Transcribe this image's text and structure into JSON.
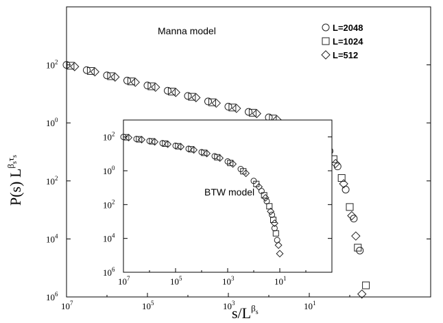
{
  "chart_data": [
    {
      "panel": "main",
      "type": "scatter",
      "annotation": "Manna model",
      "xlabel": "s/L",
      "xlabel_superscript": "β",
      "xlabel_superscript_sub": "s",
      "ylabel": "P(s) L",
      "ylabel_superscript": "β",
      "ylabel_superscript_sub": "s",
      "ylabel_superscript2": "τ",
      "ylabel_superscript2_sub": "s",
      "x_tick_labels": [
        {
          "base": "10",
          "exp": "7"
        },
        {
          "base": "10",
          "exp": "5"
        },
        {
          "base": "10",
          "exp": "3"
        },
        {
          "base": "10",
          "exp": "1"
        }
      ],
      "y_tick_labels": [
        {
          "base": "10",
          "exp": "2"
        },
        {
          "base": "10",
          "exp": "0"
        },
        {
          "base": "10",
          "exp": "2"
        },
        {
          "base": "10",
          "exp": "4"
        },
        {
          "base": "10",
          "exp": "6"
        }
      ],
      "xlim_decades": [
        -7,
        2
      ],
      "ylim_decades": [
        -6,
        4
      ],
      "legend_position": "top-right",
      "series": [
        {
          "name": "L=2048",
          "marker": "circle",
          "points": [
            [
              -7.0,
              2.0
            ],
            [
              -6.5,
              1.82
            ],
            [
              -6.0,
              1.64
            ],
            [
              -5.5,
              1.46
            ],
            [
              -5.0,
              1.29
            ],
            [
              -4.5,
              1.11
            ],
            [
              -4.0,
              0.93
            ],
            [
              -3.5,
              0.74
            ],
            [
              -3.0,
              0.56
            ],
            [
              -2.5,
              0.38
            ],
            [
              -2.0,
              0.19
            ],
            [
              -1.5,
              -0.04
            ],
            [
              -1.0,
              -0.34
            ],
            [
              -0.7,
              -0.65
            ],
            [
              -0.5,
              -0.97
            ],
            [
              -0.3,
              -1.5
            ],
            [
              -0.1,
              -2.3
            ],
            [
              0.1,
              -3.3
            ],
            [
              0.25,
              -4.4
            ]
          ]
        },
        {
          "name": "L=1024",
          "marker": "square",
          "points": [
            [
              -6.9,
              1.97
            ],
            [
              -6.4,
              1.79
            ],
            [
              -5.9,
              1.61
            ],
            [
              -5.4,
              1.43
            ],
            [
              -4.9,
              1.26
            ],
            [
              -4.4,
              1.08
            ],
            [
              -3.9,
              0.9
            ],
            [
              -3.4,
              0.71
            ],
            [
              -2.9,
              0.53
            ],
            [
              -2.4,
              0.35
            ],
            [
              -1.9,
              0.15
            ],
            [
              -1.4,
              -0.08
            ],
            [
              -0.9,
              -0.43
            ],
            [
              -0.6,
              -0.8
            ],
            [
              -0.4,
              -1.25
            ],
            [
              -0.2,
              -1.9
            ],
            [
              0.0,
              -2.9
            ],
            [
              0.2,
              -4.3
            ],
            [
              0.4,
              -5.6
            ]
          ]
        },
        {
          "name": "L=512",
          "marker": "diamond",
          "points": [
            [
              -6.8,
              1.94
            ],
            [
              -6.3,
              1.76
            ],
            [
              -5.8,
              1.58
            ],
            [
              -5.3,
              1.4
            ],
            [
              -4.8,
              1.23
            ],
            [
              -4.3,
              1.05
            ],
            [
              -3.8,
              0.87
            ],
            [
              -3.3,
              0.68
            ],
            [
              -2.8,
              0.5
            ],
            [
              -2.3,
              0.32
            ],
            [
              -1.8,
              0.11
            ],
            [
              -1.3,
              -0.14
            ],
            [
              -0.85,
              -0.5
            ],
            [
              -0.55,
              -0.9
            ],
            [
              -0.35,
              -1.4
            ],
            [
              -0.15,
              -2.1
            ],
            [
              0.05,
              -3.2
            ],
            [
              0.15,
              -3.9
            ],
            [
              0.3,
              -5.9
            ]
          ]
        }
      ]
    },
    {
      "panel": "inset",
      "type": "scatter",
      "annotation": "BTW model",
      "x_tick_labels": [
        {
          "base": "10",
          "exp": "7"
        },
        {
          "base": "10",
          "exp": "5"
        },
        {
          "base": "10",
          "exp": "3"
        },
        {
          "base": "10",
          "exp": "1"
        }
      ],
      "y_tick_labels": [
        {
          "base": "10",
          "exp": "2"
        },
        {
          "base": "10",
          "exp": "0"
        },
        {
          "base": "10",
          "exp": "2"
        },
        {
          "base": "10",
          "exp": "4"
        },
        {
          "base": "10",
          "exp": "6"
        }
      ],
      "xlim_decades": [
        -7,
        1
      ],
      "ylim_decades": [
        -6,
        3
      ],
      "series": [
        {
          "name": "L=2048",
          "marker": "circle",
          "points": [
            [
              -7.0,
              2.0
            ],
            [
              -6.5,
              1.88
            ],
            [
              -6.0,
              1.76
            ],
            [
              -5.5,
              1.63
            ],
            [
              -5.0,
              1.48
            ],
            [
              -4.5,
              1.3
            ],
            [
              -4.0,
              1.1
            ],
            [
              -3.5,
              0.86
            ],
            [
              -3.0,
              0.55
            ],
            [
              -2.5,
              0.1
            ],
            [
              -2.0,
              -0.6
            ],
            [
              -1.7,
              -1.2
            ],
            [
              -1.5,
              -1.8
            ],
            [
              -1.3,
              -2.6
            ],
            [
              -1.2,
              -3.4
            ],
            [
              -1.1,
              -4.1
            ]
          ]
        },
        {
          "name": "L=1024",
          "marker": "square",
          "points": [
            [
              -6.9,
              1.98
            ],
            [
              -6.4,
              1.86
            ],
            [
              -5.9,
              1.74
            ],
            [
              -5.4,
              1.6
            ],
            [
              -4.9,
              1.45
            ],
            [
              -4.4,
              1.27
            ],
            [
              -3.9,
              1.06
            ],
            [
              -3.4,
              0.8
            ],
            [
              -2.9,
              0.46
            ],
            [
              -2.4,
              -0.03
            ],
            [
              -1.9,
              -0.78
            ],
            [
              -1.6,
              -1.45
            ],
            [
              -1.4,
              -2.1
            ],
            [
              -1.25,
              -2.9
            ],
            [
              -1.15,
              -3.7
            ]
          ]
        },
        {
          "name": "L=512",
          "marker": "diamond",
          "points": [
            [
              -6.8,
              1.96
            ],
            [
              -6.3,
              1.84
            ],
            [
              -5.8,
              1.71
            ],
            [
              -5.3,
              1.57
            ],
            [
              -4.8,
              1.42
            ],
            [
              -4.3,
              1.23
            ],
            [
              -3.8,
              1.02
            ],
            [
              -3.3,
              0.75
            ],
            [
              -2.8,
              0.4
            ],
            [
              -2.3,
              -0.15
            ],
            [
              -1.8,
              -0.95
            ],
            [
              -1.55,
              -1.6
            ],
            [
              -1.35,
              -2.4
            ],
            [
              -1.2,
              -3.1
            ],
            [
              -1.05,
              -4.4
            ],
            [
              -1.0,
              -4.9
            ]
          ]
        }
      ]
    }
  ]
}
